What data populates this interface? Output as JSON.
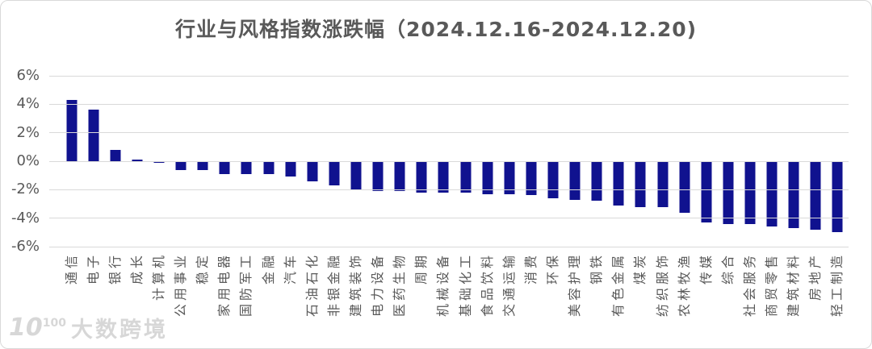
{
  "watermark": {
    "logo_base": "10",
    "logo_sup": "100",
    "text": "大数跨境"
  },
  "chart_data": {
    "type": "bar",
    "title": "行业与风格指数涨跌幅（2024.12.16-2024.12.20)",
    "categories": [
      "通信",
      "电子",
      "银行",
      "成长",
      "计算机",
      "公用事业",
      "稳定",
      "家用电器",
      "国防军工",
      "金融",
      "汽车",
      "石油石化",
      "非银金融",
      "建筑装饰",
      "电力设备",
      "医药生物",
      "周期",
      "机械设备",
      "基础化工",
      "食品饮料",
      "交通运输",
      "消费",
      "环保",
      "美容护理",
      "钢铁",
      "有色金属",
      "煤炭",
      "纺织服饰",
      "农林牧渔",
      "传媒",
      "综合",
      "社会服务",
      "商贸零售",
      "建筑材料",
      "房地产",
      "轻工制造"
    ],
    "values": [
      4.3,
      3.6,
      0.8,
      0.1,
      -0.1,
      -0.6,
      -0.6,
      -0.9,
      -0.9,
      -0.9,
      -1.1,
      -1.4,
      -1.7,
      -2.0,
      -2.1,
      -2.1,
      -2.2,
      -2.2,
      -2.2,
      -2.3,
      -2.3,
      -2.4,
      -2.6,
      -2.7,
      -2.8,
      -3.1,
      -3.2,
      -3.2,
      -3.6,
      -4.3,
      -4.4,
      -4.4,
      -4.6,
      -4.7,
      -4.8,
      -5.0
    ],
    "xlabel": "",
    "ylabel": "",
    "y_tick_labels": [
      "6%",
      "4%",
      "2%",
      "0%",
      "-2%",
      "-4%",
      "-6%"
    ],
    "ylim": [
      -6,
      6
    ],
    "y_tick_step": 2,
    "grid": true,
    "legend_position": "none",
    "bar_color": "#10128F",
    "gridline_color": "#D9D9D9",
    "axis_text_color": "#595959",
    "title_color": "#595959"
  }
}
